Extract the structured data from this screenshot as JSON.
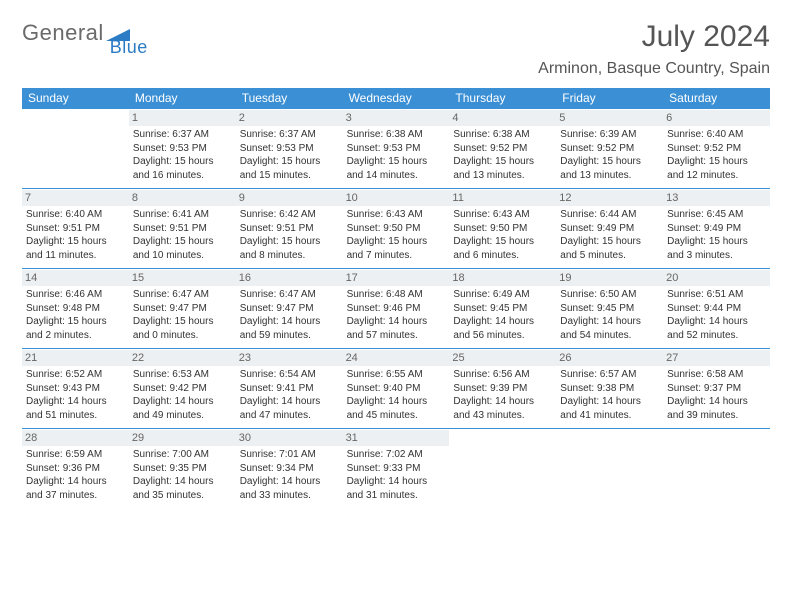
{
  "brand": {
    "part1": "General",
    "part2": "Blue",
    "accent": "#2b7cc4",
    "gray": "#6a6a6a"
  },
  "title": "July 2024",
  "location": "Arminon, Basque Country, Spain",
  "weekdays": [
    "Sunday",
    "Monday",
    "Tuesday",
    "Wednesday",
    "Thursday",
    "Friday",
    "Saturday"
  ],
  "colors": {
    "header_bg": "#3b8fd4",
    "band_bg": "#edf0f2",
    "rule": "#3b8fd4"
  },
  "start_weekday": 1,
  "days": [
    {
      "n": 1,
      "sunrise": "6:37 AM",
      "sunset": "9:53 PM",
      "daylight": "15 hours and 16 minutes."
    },
    {
      "n": 2,
      "sunrise": "6:37 AM",
      "sunset": "9:53 PM",
      "daylight": "15 hours and 15 minutes."
    },
    {
      "n": 3,
      "sunrise": "6:38 AM",
      "sunset": "9:53 PM",
      "daylight": "15 hours and 14 minutes."
    },
    {
      "n": 4,
      "sunrise": "6:38 AM",
      "sunset": "9:52 PM",
      "daylight": "15 hours and 13 minutes."
    },
    {
      "n": 5,
      "sunrise": "6:39 AM",
      "sunset": "9:52 PM",
      "daylight": "15 hours and 13 minutes."
    },
    {
      "n": 6,
      "sunrise": "6:40 AM",
      "sunset": "9:52 PM",
      "daylight": "15 hours and 12 minutes."
    },
    {
      "n": 7,
      "sunrise": "6:40 AM",
      "sunset": "9:51 PM",
      "daylight": "15 hours and 11 minutes."
    },
    {
      "n": 8,
      "sunrise": "6:41 AM",
      "sunset": "9:51 PM",
      "daylight": "15 hours and 10 minutes."
    },
    {
      "n": 9,
      "sunrise": "6:42 AM",
      "sunset": "9:51 PM",
      "daylight": "15 hours and 8 minutes."
    },
    {
      "n": 10,
      "sunrise": "6:43 AM",
      "sunset": "9:50 PM",
      "daylight": "15 hours and 7 minutes."
    },
    {
      "n": 11,
      "sunrise": "6:43 AM",
      "sunset": "9:50 PM",
      "daylight": "15 hours and 6 minutes."
    },
    {
      "n": 12,
      "sunrise": "6:44 AM",
      "sunset": "9:49 PM",
      "daylight": "15 hours and 5 minutes."
    },
    {
      "n": 13,
      "sunrise": "6:45 AM",
      "sunset": "9:49 PM",
      "daylight": "15 hours and 3 minutes."
    },
    {
      "n": 14,
      "sunrise": "6:46 AM",
      "sunset": "9:48 PM",
      "daylight": "15 hours and 2 minutes."
    },
    {
      "n": 15,
      "sunrise": "6:47 AM",
      "sunset": "9:47 PM",
      "daylight": "15 hours and 0 minutes."
    },
    {
      "n": 16,
      "sunrise": "6:47 AM",
      "sunset": "9:47 PM",
      "daylight": "14 hours and 59 minutes."
    },
    {
      "n": 17,
      "sunrise": "6:48 AM",
      "sunset": "9:46 PM",
      "daylight": "14 hours and 57 minutes."
    },
    {
      "n": 18,
      "sunrise": "6:49 AM",
      "sunset": "9:45 PM",
      "daylight": "14 hours and 56 minutes."
    },
    {
      "n": 19,
      "sunrise": "6:50 AM",
      "sunset": "9:45 PM",
      "daylight": "14 hours and 54 minutes."
    },
    {
      "n": 20,
      "sunrise": "6:51 AM",
      "sunset": "9:44 PM",
      "daylight": "14 hours and 52 minutes."
    },
    {
      "n": 21,
      "sunrise": "6:52 AM",
      "sunset": "9:43 PM",
      "daylight": "14 hours and 51 minutes."
    },
    {
      "n": 22,
      "sunrise": "6:53 AM",
      "sunset": "9:42 PM",
      "daylight": "14 hours and 49 minutes."
    },
    {
      "n": 23,
      "sunrise": "6:54 AM",
      "sunset": "9:41 PM",
      "daylight": "14 hours and 47 minutes."
    },
    {
      "n": 24,
      "sunrise": "6:55 AM",
      "sunset": "9:40 PM",
      "daylight": "14 hours and 45 minutes."
    },
    {
      "n": 25,
      "sunrise": "6:56 AM",
      "sunset": "9:39 PM",
      "daylight": "14 hours and 43 minutes."
    },
    {
      "n": 26,
      "sunrise": "6:57 AM",
      "sunset": "9:38 PM",
      "daylight": "14 hours and 41 minutes."
    },
    {
      "n": 27,
      "sunrise": "6:58 AM",
      "sunset": "9:37 PM",
      "daylight": "14 hours and 39 minutes."
    },
    {
      "n": 28,
      "sunrise": "6:59 AM",
      "sunset": "9:36 PM",
      "daylight": "14 hours and 37 minutes."
    },
    {
      "n": 29,
      "sunrise": "7:00 AM",
      "sunset": "9:35 PM",
      "daylight": "14 hours and 35 minutes."
    },
    {
      "n": 30,
      "sunrise": "7:01 AM",
      "sunset": "9:34 PM",
      "daylight": "14 hours and 33 minutes."
    },
    {
      "n": 31,
      "sunrise": "7:02 AM",
      "sunset": "9:33 PM",
      "daylight": "14 hours and 31 minutes."
    }
  ],
  "labels": {
    "sunrise": "Sunrise:",
    "sunset": "Sunset:",
    "daylight": "Daylight:"
  }
}
